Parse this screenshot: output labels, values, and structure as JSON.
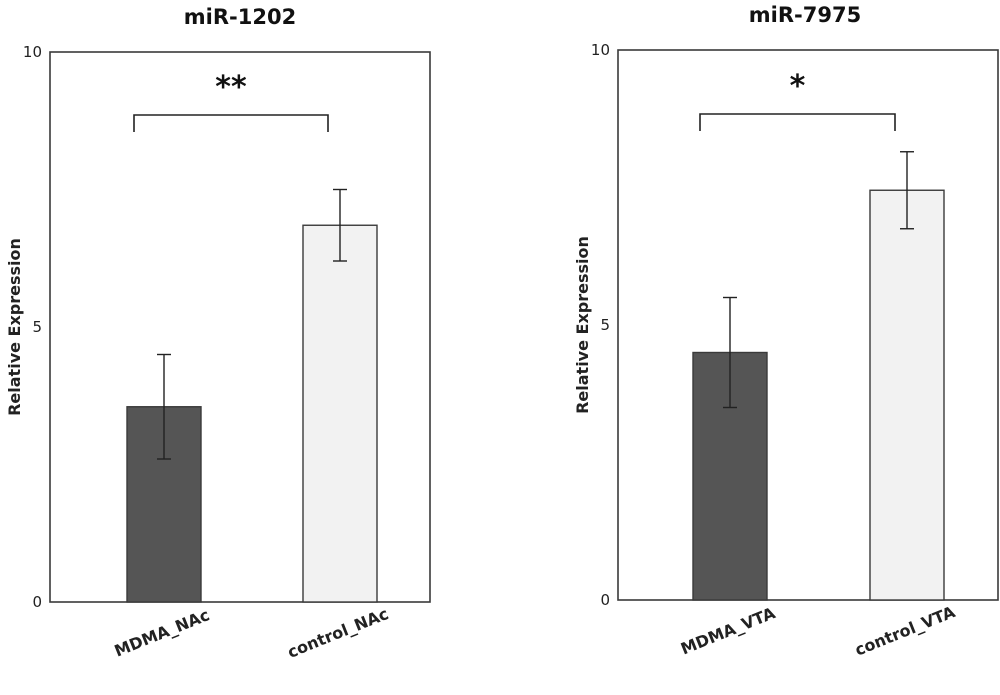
{
  "chart_data": [
    {
      "type": "bar",
      "title": "miR-1202",
      "xlabel": "",
      "ylabel": "Relative Expression",
      "ylim": [
        0,
        10
      ],
      "yticks": [
        0,
        5,
        10
      ],
      "categories": [
        "MDMA_NAc",
        "control_NAc"
      ],
      "values": [
        3.55,
        6.85
      ],
      "errors": [
        0.95,
        0.65
      ],
      "colors": [
        "#555555",
        "#f2f2f2"
      ],
      "significance": "**",
      "grid": false
    },
    {
      "type": "bar",
      "title": "miR-7975",
      "xlabel": "",
      "ylabel": "Relative Expression",
      "ylim": [
        0,
        10
      ],
      "yticks": [
        0,
        5,
        10
      ],
      "categories": [
        "MDMA_VTA",
        "control_VTA"
      ],
      "values": [
        4.5,
        7.45
      ],
      "errors": [
        1.0,
        0.7
      ],
      "colors": [
        "#555555",
        "#f2f2f2"
      ],
      "significance": "*",
      "grid": false
    }
  ]
}
